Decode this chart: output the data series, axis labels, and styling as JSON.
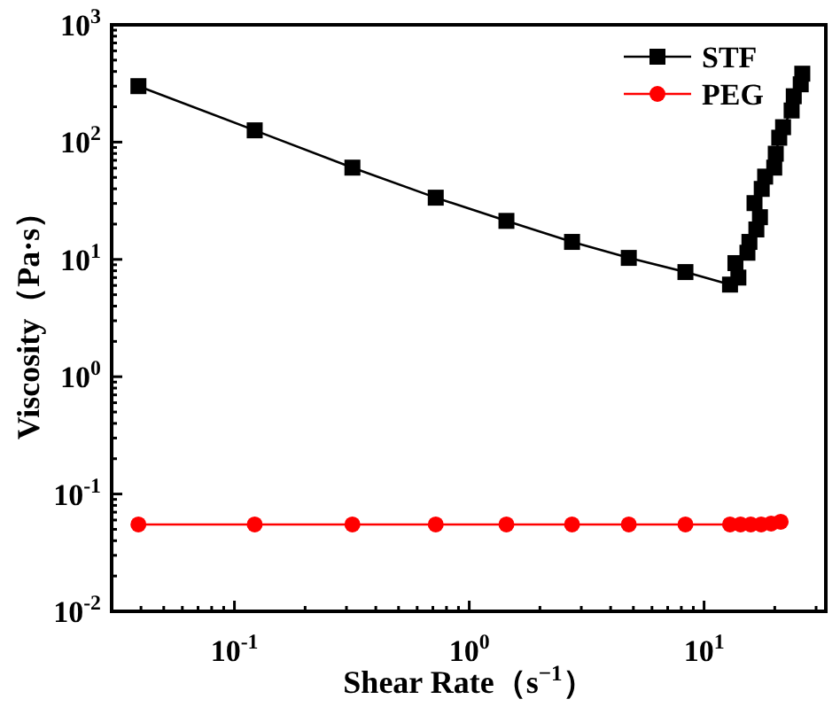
{
  "chart_data": {
    "type": "line",
    "xlabel": "Shear Rate（s$^{−1}$）",
    "ylabel": "Viscosity（Pa·s）",
    "log": "xy",
    "xlim": [
      0.03,
      33
    ],
    "ylim": [
      0.01,
      1000
    ],
    "xticks": [
      {
        "value": 0.1,
        "label": "10$^{-1}$"
      },
      {
        "value": 1,
        "label": "10$^{0}$"
      },
      {
        "value": 10,
        "label": "10$^{1}$"
      }
    ],
    "yticks": [
      {
        "value": 0.01,
        "label": "10$^{-2}$"
      },
      {
        "value": 0.1,
        "label": "10$^{-1}$"
      },
      {
        "value": 1,
        "label": "10$^{0}$"
      },
      {
        "value": 10,
        "label": "10$^{1}$"
      },
      {
        "value": 100,
        "label": "10$^{2}$"
      },
      {
        "value": 1000,
        "label": "10$^{3}$"
      }
    ],
    "legend": "top right",
    "grid": false,
    "series": [
      {
        "name": "STF",
        "color": "#000000",
        "marker": "square",
        "x": [
          0.039,
          0.122,
          0.318,
          0.72,
          1.44,
          2.74,
          4.78,
          8.33,
          12.9,
          14.0,
          13.6,
          15.3,
          15.6,
          16.7,
          17.3,
          16.4,
          17.6,
          18.2,
          19.9,
          20.2,
          20.9,
          21.7,
          23.6,
          24.1,
          25.8,
          26.2
        ],
        "values": [
          300,
          126,
          60.6,
          33.6,
          21.3,
          14.1,
          10.3,
          7.8,
          6.1,
          7.0,
          9.3,
          11.4,
          14.1,
          18.0,
          22.9,
          30.2,
          39.9,
          50.8,
          60.6,
          79.6,
          109,
          134,
          186,
          246,
          311,
          383
        ]
      },
      {
        "name": "PEG",
        "color": "#ff0000",
        "marker": "circle",
        "x": [
          0.039,
          0.122,
          0.318,
          0.72,
          1.44,
          2.74,
          4.78,
          8.33,
          12.9,
          14.3,
          15.8,
          17.5,
          19.3,
          21.2
        ],
        "values": [
          0.055,
          0.055,
          0.055,
          0.055,
          0.055,
          0.055,
          0.055,
          0.055,
          0.055,
          0.055,
          0.055,
          0.055,
          0.056,
          0.058
        ]
      }
    ]
  }
}
